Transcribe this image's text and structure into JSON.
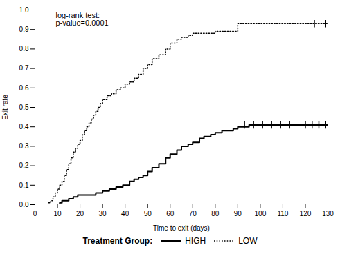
{
  "chart_data": {
    "type": "step",
    "xlabel": "Time to exit (days)",
    "ylabel": "Exit rate",
    "annotation": "log-rank test:\np-value=0.0001",
    "xlim": [
      0,
      130
    ],
    "ylim": [
      0.0,
      1.0
    ],
    "xticks": [
      0,
      10,
      20,
      30,
      40,
      50,
      60,
      70,
      80,
      90,
      100,
      110,
      120,
      130
    ],
    "yticks": [
      {
        "value": 0.0,
        "label": "0.0"
      },
      0.1,
      0.2,
      0.3,
      0.4,
      0.5,
      0.6,
      0.7,
      0.8,
      0.9,
      {
        "value": 1.0,
        "label": "1.0"
      }
    ],
    "grid": false,
    "legend": "bottom",
    "legend_title": "Treatment Group:",
    "series": [
      {
        "name": "HIGH",
        "color": "#000000",
        "line_style": "solid",
        "x": [
          0,
          10,
          11,
          12,
          13,
          14,
          15,
          17,
          19,
          25,
          27,
          30,
          33,
          36,
          39,
          42,
          44,
          46,
          48,
          50,
          52,
          55,
          58,
          60,
          63,
          65,
          68,
          70,
          73,
          75,
          78,
          80,
          83,
          85,
          88,
          90,
          95,
          100,
          105,
          110,
          115,
          120,
          125,
          130
        ],
        "values": [
          0.0,
          0.0,
          0.01,
          0.02,
          0.02,
          0.02,
          0.03,
          0.04,
          0.05,
          0.05,
          0.06,
          0.07,
          0.08,
          0.09,
          0.1,
          0.12,
          0.13,
          0.14,
          0.15,
          0.17,
          0.19,
          0.21,
          0.24,
          0.26,
          0.28,
          0.3,
          0.31,
          0.32,
          0.34,
          0.35,
          0.36,
          0.37,
          0.38,
          0.38,
          0.39,
          0.4,
          0.41,
          0.41,
          0.41,
          0.41,
          0.41,
          0.41,
          0.41,
          0.41
        ],
        "censors_x": [
          93,
          97,
          101,
          105,
          109,
          113,
          120,
          123,
          126,
          129
        ],
        "censors_y": [
          0.41,
          0.41,
          0.41,
          0.41,
          0.41,
          0.41,
          0.41,
          0.41,
          0.41,
          0.41
        ]
      },
      {
        "name": "LOW",
        "color": "#000000",
        "line_style": "dotted",
        "x": [
          0,
          6,
          7,
          8,
          9,
          10,
          11,
          12,
          13,
          14,
          15,
          16,
          17,
          18,
          19,
          20,
          21,
          22,
          23,
          24,
          25,
          26,
          27,
          28,
          29,
          30,
          32,
          34,
          36,
          38,
          40,
          42,
          44,
          46,
          48,
          50,
          52,
          55,
          58,
          60,
          63,
          65,
          68,
          70,
          75,
          80,
          85,
          88,
          90,
          95,
          100,
          110,
          120,
          130
        ],
        "values": [
          0.0,
          0.01,
          0.02,
          0.04,
          0.06,
          0.08,
          0.1,
          0.12,
          0.15,
          0.18,
          0.21,
          0.24,
          0.27,
          0.29,
          0.31,
          0.33,
          0.36,
          0.38,
          0.4,
          0.42,
          0.44,
          0.46,
          0.48,
          0.5,
          0.52,
          0.54,
          0.56,
          0.57,
          0.59,
          0.6,
          0.62,
          0.63,
          0.65,
          0.67,
          0.7,
          0.72,
          0.75,
          0.77,
          0.8,
          0.83,
          0.85,
          0.86,
          0.87,
          0.88,
          0.88,
          0.89,
          0.89,
          0.89,
          0.93,
          0.93,
          0.93,
          0.93,
          0.93,
          0.93
        ],
        "censors_x": [
          124,
          129
        ],
        "censors_y": [
          0.93,
          0.93
        ]
      }
    ]
  }
}
